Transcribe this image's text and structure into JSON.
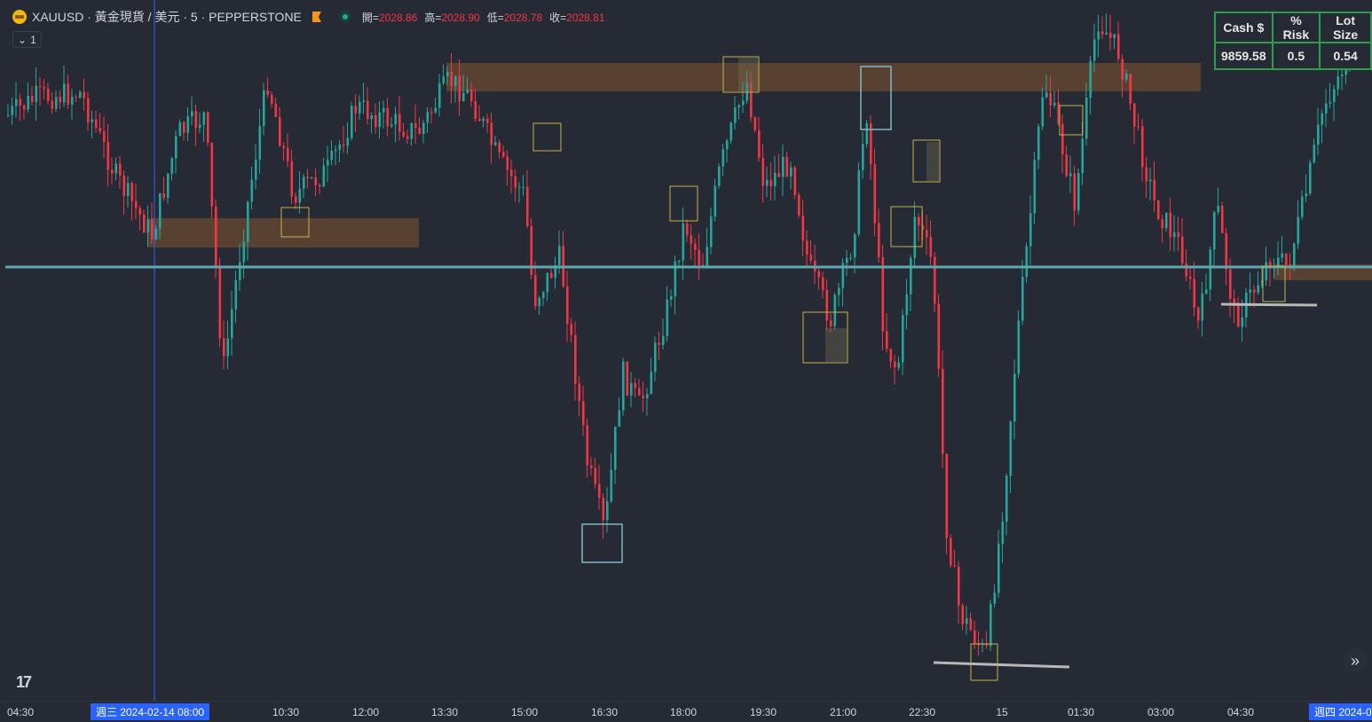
{
  "legend": {
    "title": "XAUUSD · 黃金現貨 / 美元 · 5 · PEPPERSTONE",
    "ohlc": [
      {
        "key": "開=",
        "value": "2028.86"
      },
      {
        "key": "高=",
        "value": "2028.90"
      },
      {
        "key": "低=",
        "value": "2028.78"
      },
      {
        "key": "收=",
        "value": "2028.81"
      }
    ],
    "interval_count": "1"
  },
  "risk_table": {
    "headers": [
      "Cash $",
      "% Risk",
      "Lot Size"
    ],
    "values": [
      "9859.58",
      "0.5",
      "0.54"
    ]
  },
  "time_axis": {
    "ticks": [
      "04:30",
      "10:30",
      "12:00",
      "13:30",
      "15:00",
      "16:30",
      "18:00",
      "19:30",
      "21:00",
      "22:30",
      "15",
      "01:30",
      "03:00",
      "04:30"
    ],
    "cursor_left": "週三 2024-02-14   08:00",
    "cursor_right": "週四 2024-0"
  },
  "colors": {
    "background": "#262a35",
    "up_candle": "#26a69a",
    "down_candle": "#f23645",
    "zone": "#6b4a30",
    "horizontal_line": "#5fa8b0",
    "box_yellow": "#c8b24a",
    "box_cyan": "#7fb7c4",
    "cursor_blue": "#2962ff"
  },
  "icons": {
    "symbol": "gold-coin-icon",
    "flag": "flag-icon",
    "status": "market-status-dot-icon",
    "collapse": "chevron-down-icon",
    "logo": "tradingview-logo-icon",
    "scroll": "double-chevron-right-icon"
  }
}
